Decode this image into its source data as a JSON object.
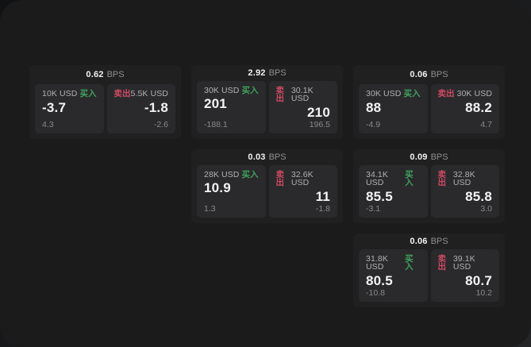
{
  "theme": {
    "window_bg": "#1b1b1c",
    "card_bg": "#202021",
    "panel_bg": "#2a2a2c",
    "text_primary": "#f4f4f5",
    "text_secondary": "#b1b1b3",
    "text_muted": "#8a8a8c",
    "buy_color": "#3fa25d",
    "sell_color": "#cd4a63"
  },
  "labels": {
    "bps_unit": "BPS",
    "buy": "买入",
    "sell": "卖出"
  },
  "cards": [
    {
      "bps": "0.62",
      "buy": {
        "size": "10K USD",
        "price": "-3.7",
        "delta": "4.3"
      },
      "sell": {
        "size": "5.5K USD",
        "price": "-1.8",
        "delta": "-2.6"
      }
    },
    {
      "bps": "2.92",
      "buy": {
        "size": "30K USD",
        "price": "201",
        "delta": "-188.1"
      },
      "sell": {
        "size": "30.1K USD",
        "price": "210",
        "delta": "196.5"
      }
    },
    {
      "bps": "0.06",
      "buy": {
        "size": "30K USD",
        "price": "88",
        "delta": "-4.9"
      },
      "sell": {
        "size": "30K USD",
        "price": "88.2",
        "delta": "4.7"
      }
    },
    {
      "bps": "0.03",
      "buy": {
        "size": "28K USD",
        "price": "10.9",
        "delta": "1.3"
      },
      "sell": {
        "size": "32.6K USD",
        "price": "11",
        "delta": "-1.8"
      }
    },
    {
      "bps": "0.09",
      "buy": {
        "size": "34.1K USD",
        "price": "85.5",
        "delta": "-3.1"
      },
      "sell": {
        "size": "32.8K USD",
        "price": "85.8",
        "delta": "3.0"
      }
    },
    {
      "bps": "0.06",
      "buy": {
        "size": "31.8K USD",
        "price": "80.5",
        "delta": "-10.8"
      },
      "sell": {
        "size": "39.1K USD",
        "price": "80.7",
        "delta": "10.2"
      }
    }
  ]
}
